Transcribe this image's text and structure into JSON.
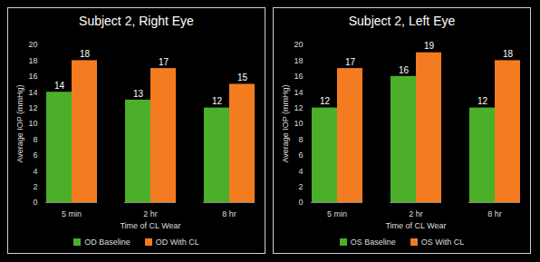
{
  "chart_data": [
    {
      "type": "bar",
      "title": "Subject 2, Right Eye",
      "categories": [
        "5 min",
        "2 hr",
        "8 hr"
      ],
      "series": [
        {
          "name": "OD Baseline",
          "color": "#4caf2a",
          "values": [
            14,
            13,
            12
          ]
        },
        {
          "name": "OD With CL",
          "color": "#f47c20",
          "values": [
            18,
            17,
            15
          ]
        }
      ],
      "x_label": "Time of CL Wear",
      "y_label": "Average IOP (mmHg)",
      "ylim": [
        0,
        20
      ],
      "yticks": [
        0,
        2,
        4,
        6,
        8,
        10,
        12,
        14,
        16,
        18,
        20
      ],
      "grid": false,
      "legend": "bottom",
      "data_labels": true
    },
    {
      "type": "bar",
      "title": "Subject 2, Left Eye",
      "categories": [
        "5 min",
        "2 hr",
        "8 hr"
      ],
      "series": [
        {
          "name": "OS Baseline",
          "color": "#4caf2a",
          "values": [
            12,
            16,
            12
          ]
        },
        {
          "name": "OS With CL",
          "color": "#f47c20",
          "values": [
            17,
            19,
            18
          ]
        }
      ],
      "x_label": "Time of CL Wear",
      "y_label": "Average IOP (mmHg)",
      "ylim": [
        0,
        20
      ],
      "yticks": [
        0,
        2,
        4,
        6,
        8,
        10,
        12,
        14,
        16,
        18,
        20
      ],
      "grid": false,
      "legend": "bottom",
      "data_labels": true
    }
  ]
}
